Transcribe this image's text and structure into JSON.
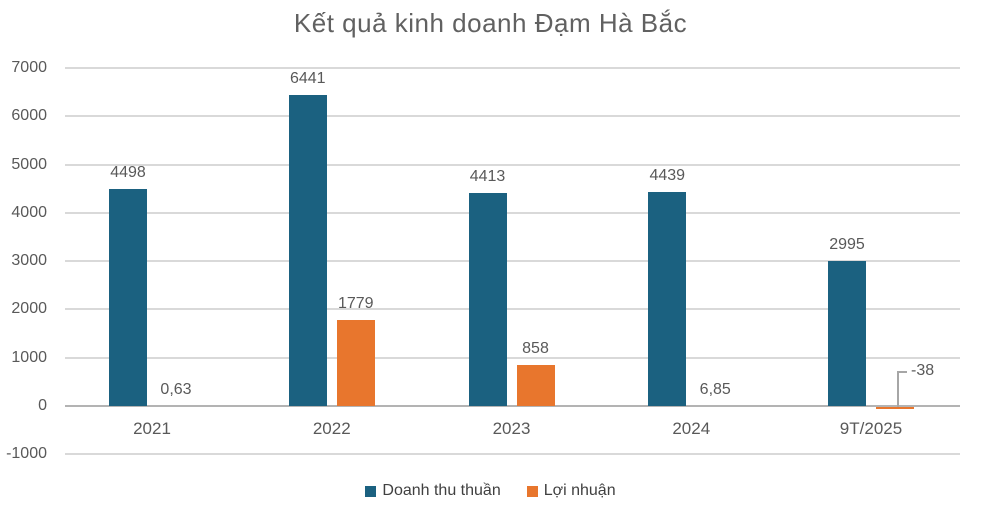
{
  "chart_data": {
    "type": "bar",
    "title": "Kết quả kinh doanh Đạm Hà Bắc",
    "categories": [
      "2021",
      "2022",
      "2023",
      "2024",
      "9T/2025"
    ],
    "series": [
      {
        "name": "Doanh thu thuần",
        "color": "#1b6180",
        "values": [
          4498,
          6441,
          4413,
          4439,
          2995
        ],
        "value_labels": [
          "4498",
          "6441",
          "4413",
          "4439",
          "2995"
        ]
      },
      {
        "name": "Lợi nhuận",
        "color": "#e8762d",
        "values": [
          0.63,
          1779,
          858,
          6.85,
          -38
        ],
        "value_labels": [
          "0,63",
          "1779",
          "858",
          "6,85",
          "-38"
        ]
      }
    ],
    "ylim": [
      -1000,
      7000
    ],
    "ytick_interval": 1000,
    "ytick_labels": [
      "7000",
      "6000",
      "5000",
      "4000",
      "3000",
      "2000",
      "1000",
      "0",
      "-1000"
    ],
    "grid": "horizontal",
    "legend_position": "bottom",
    "annotations": [
      {
        "target_series": "Lợi nhuận",
        "target_category": "9T/2025",
        "label": "-38",
        "style": "callout-leader-line"
      }
    ]
  },
  "colors": {
    "background": "#ffffff",
    "revenue_bar": "#1b6180",
    "profit_bar": "#e8762d",
    "gridline": "#d9d9d9",
    "zero_axis": "#b3b3b3",
    "label_text": "#595959",
    "title_text": "#616161",
    "legend_text": "#404040",
    "leader_line": "#a6a6a6"
  }
}
